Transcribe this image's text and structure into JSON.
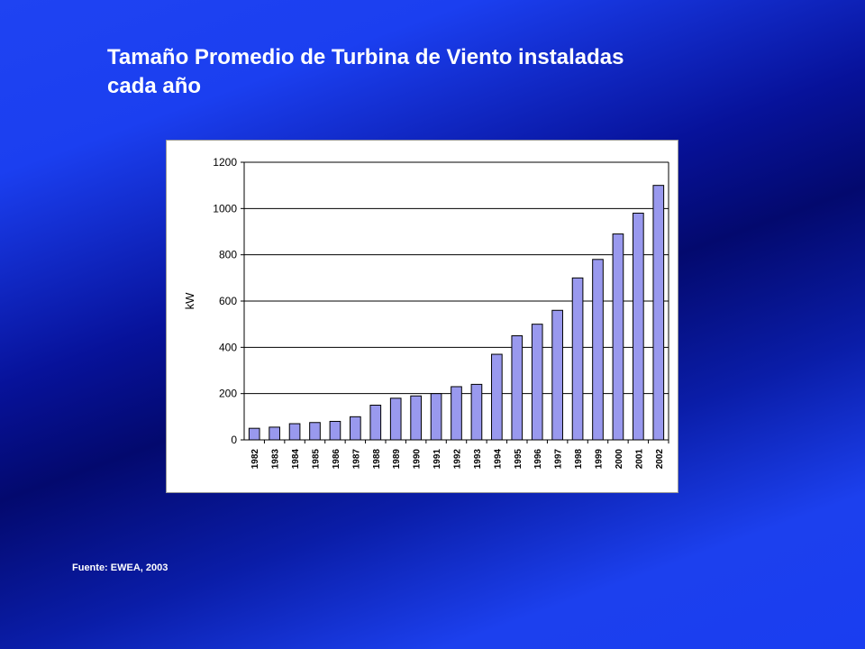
{
  "slide": {
    "title_line1": "Tamaño Promedio de Turbina de Viento instaladas",
    "title_line2": "cada año",
    "source": "Fuente: EWEA, 2003"
  },
  "colors": {
    "bar_fill": "#9999ee",
    "bar_stroke": "#000000",
    "text_white": "#ffffff"
  },
  "chart_data": {
    "type": "bar",
    "categories": [
      "1982",
      "1983",
      "1984",
      "1985",
      "1986",
      "1987",
      "1988",
      "1989",
      "1990",
      "1991",
      "1992",
      "1993",
      "1994",
      "1995",
      "1996",
      "1997",
      "1998",
      "1999",
      "2000",
      "2001",
      "2002"
    ],
    "values": [
      50,
      55,
      70,
      75,
      80,
      100,
      150,
      180,
      190,
      200,
      230,
      240,
      370,
      450,
      500,
      560,
      700,
      780,
      890,
      980,
      1100
    ],
    "ylabel": "kW",
    "xlabel": "",
    "ylim": [
      0,
      1200
    ],
    "yticks": [
      "0",
      "200",
      "400",
      "600",
      "800",
      "1000",
      "1200"
    ],
    "grid": true,
    "legend": "none"
  }
}
